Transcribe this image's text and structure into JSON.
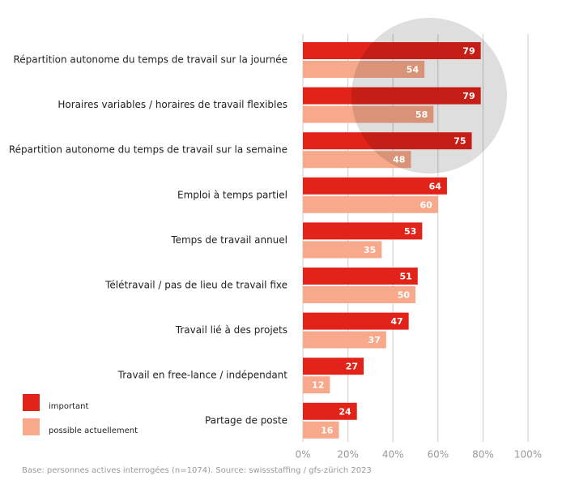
{
  "chart_data": {
    "type": "bar",
    "orientation": "horizontal",
    "categories": [
      "Répartition autonome du temps de travail sur la journée",
      "Horaires variables / horaires de travail flexibles",
      "Répartition autonome du temps de travail sur la semaine",
      "Emploi à temps partiel",
      "Temps de travail annuel",
      "Télétravail / pas de lieu de travail fixe",
      "Travail lié à des projets",
      "Travail en free-lance / indépendant",
      "Partage de poste"
    ],
    "series": [
      {
        "name": "important",
        "color": "#e2231a",
        "values": [
          79,
          79,
          75,
          64,
          53,
          51,
          47,
          27,
          24
        ]
      },
      {
        "name": "possible actuellement",
        "color": "#f9a98b",
        "values": [
          54,
          58,
          48,
          60,
          35,
          50,
          37,
          12,
          16
        ]
      }
    ],
    "xlim": [
      0,
      100
    ],
    "xticks": [
      {
        "value": 0,
        "label": "0%"
      },
      {
        "value": 20,
        "label": "20%"
      },
      {
        "value": 40,
        "label": "40%"
      },
      {
        "value": 60,
        "label": "60%"
      },
      {
        "value": 80,
        "label": "80%"
      },
      {
        "value": 100,
        "label": "100%"
      }
    ],
    "grid": true,
    "legend": "bottom-left",
    "footnote": "Base: personnes actives interrogées (n=1074). Source: swissstaffing / gfs-zürich 2023"
  }
}
